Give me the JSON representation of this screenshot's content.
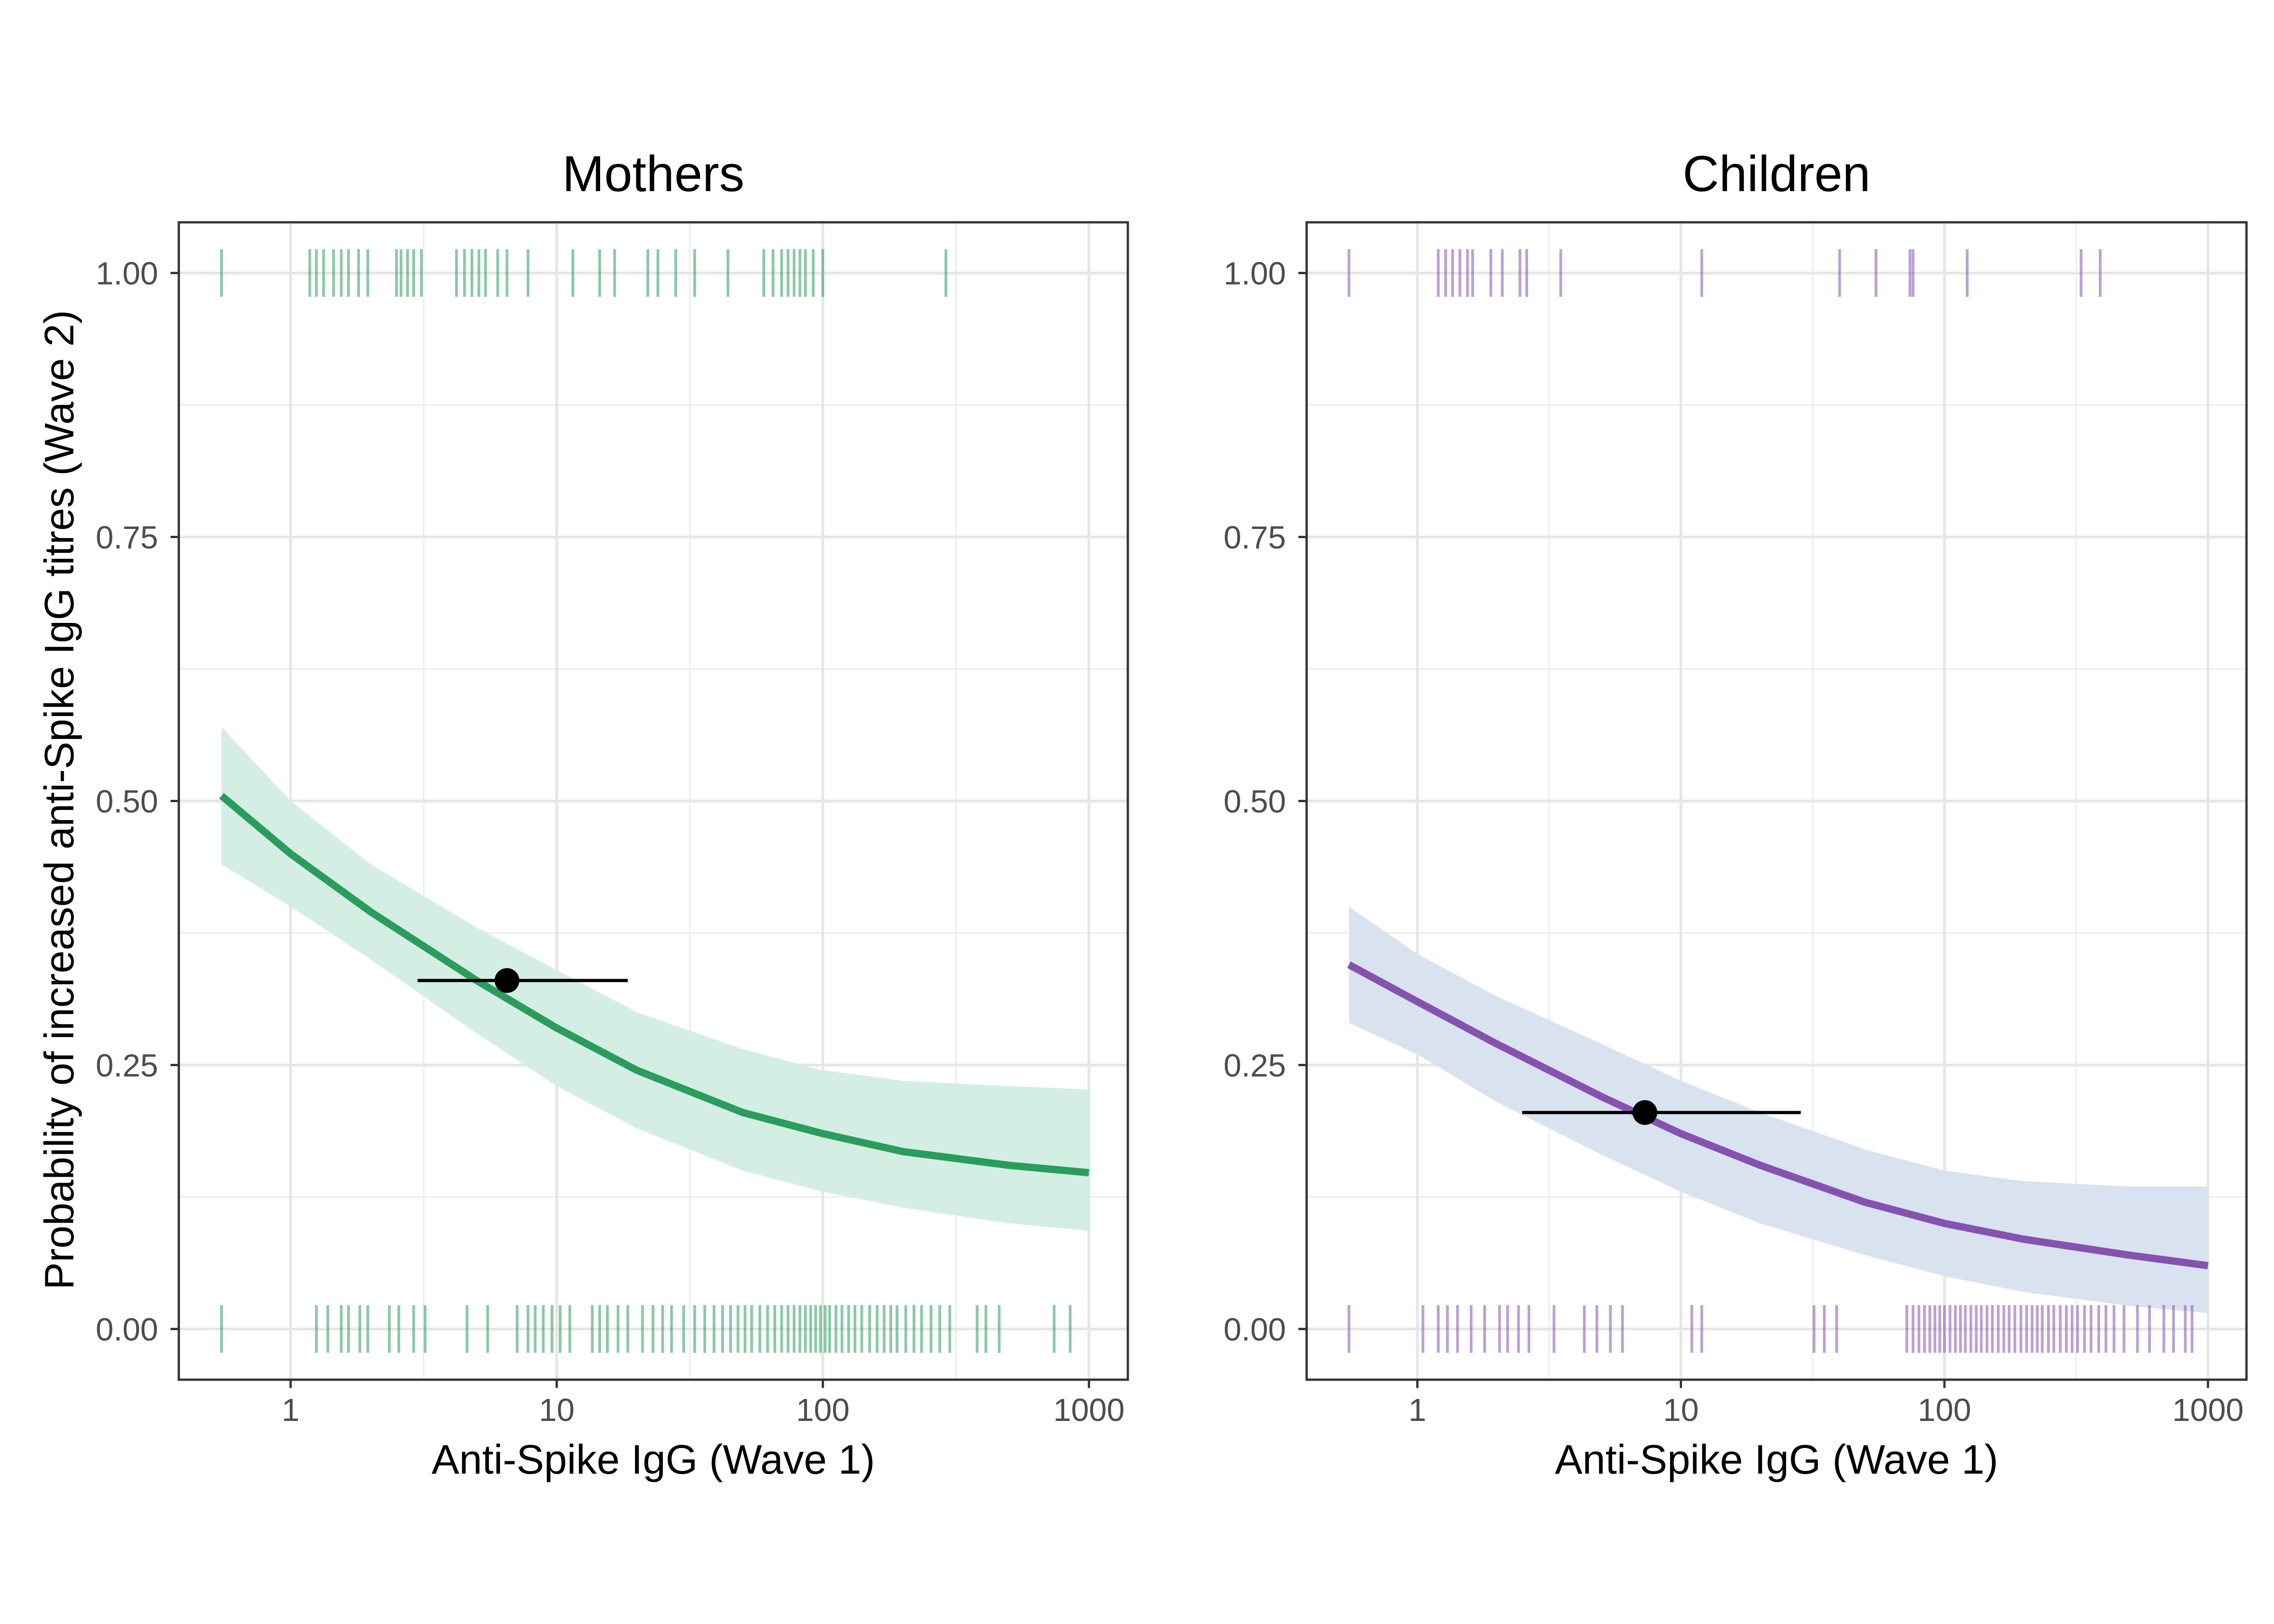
{
  "ylabel": "Probability of increased anti-Spike IgG titres (Wave 2)",
  "chart_data": [
    {
      "type": "line",
      "title": "Mothers",
      "xlabel": "Anti-Spike IgG (Wave 1)",
      "ylabel": "Probability of increased anti-Spike IgG titres (Wave 2)",
      "x_scale": "log10",
      "xlim": [
        0.38,
        1400
      ],
      "ylim": [
        -0.048,
        1.048
      ],
      "x_ticks": [
        1,
        10,
        100,
        1000
      ],
      "x_tick_labels": [
        "1",
        "10",
        "100",
        "1000"
      ],
      "y_ticks": [
        0,
        0.25,
        0.5,
        0.75,
        1
      ],
      "y_tick_labels": [
        "0.00",
        "0.25",
        "0.50",
        "0.75",
        "1.00"
      ],
      "grid": true,
      "color": "#2a9d5c",
      "band_color": "#d4eee4",
      "fit": {
        "x": [
          0.55,
          1,
          2,
          5,
          10,
          20,
          50,
          100,
          200,
          500,
          1000
        ],
        "y": [
          0.505,
          0.45,
          0.395,
          0.33,
          0.285,
          0.245,
          0.205,
          0.185,
          0.168,
          0.155,
          0.148
        ],
        "lower": [
          0.44,
          0.4,
          0.35,
          0.28,
          0.23,
          0.19,
          0.15,
          0.13,
          0.115,
          0.1,
          0.093
        ],
        "upper": [
          0.57,
          0.5,
          0.44,
          0.38,
          0.34,
          0.3,
          0.265,
          0.245,
          0.235,
          0.23,
          0.227
        ]
      },
      "point": {
        "x": 6.5,
        "y": 0.33,
        "x_low": 3.0,
        "x_high": 18.5
      },
      "rug_top": [
        0.55,
        1.18,
        1.25,
        1.33,
        1.45,
        1.55,
        1.65,
        1.8,
        1.95,
        2.5,
        2.6,
        2.75,
        2.9,
        3.1,
        4.2,
        4.5,
        4.8,
        5.1,
        5.4,
        6.0,
        6.5,
        7.8,
        11.5,
        14.5,
        16.5,
        22,
        24,
        28,
        33,
        44,
        60,
        65,
        70,
        74,
        78,
        82,
        86,
        92,
        100,
        290
      ],
      "rug_bottom": [
        0.55,
        1.25,
        1.38,
        1.55,
        1.65,
        1.82,
        1.95,
        2.35,
        2.55,
        2.9,
        3.2,
        4.6,
        5.5,
        7.1,
        7.8,
        8.3,
        8.9,
        9.6,
        10.3,
        11.2,
        13.6,
        14.5,
        15.5,
        17,
        18.5,
        21,
        23,
        25,
        27,
        30,
        33,
        36,
        39,
        42,
        45,
        48,
        51,
        54,
        58,
        62,
        66,
        70,
        74,
        78,
        82,
        86,
        90,
        94,
        98,
        102,
        106,
        112,
        118,
        125,
        132,
        140,
        150,
        160,
        170,
        180,
        190,
        205,
        220,
        235,
        255,
        275,
        300,
        380,
        410,
        460,
        740,
        850
      ]
    },
    {
      "type": "line",
      "title": "Children",
      "xlabel": "Anti-Spike IgG (Wave 1)",
      "ylabel": "",
      "x_scale": "log10",
      "xlim": [
        0.38,
        1400
      ],
      "ylim": [
        -0.048,
        1.048
      ],
      "x_ticks": [
        1,
        10,
        100,
        1000
      ],
      "x_tick_labels": [
        "1",
        "10",
        "100",
        "1000"
      ],
      "y_ticks": [
        0,
        0.25,
        0.5,
        0.75,
        1
      ],
      "y_tick_labels": [
        "0.00",
        "0.25",
        "0.50",
        "0.75",
        "1.00"
      ],
      "grid": true,
      "color": "#8652b0",
      "band_color": "#d9e3ef",
      "fit": {
        "x": [
          0.55,
          1,
          2,
          5,
          10,
          20,
          50,
          100,
          200,
          500,
          1000
        ],
        "y": [
          0.345,
          0.31,
          0.27,
          0.22,
          0.185,
          0.155,
          0.12,
          0.1,
          0.085,
          0.07,
          0.06
        ],
        "lower": [
          0.29,
          0.26,
          0.215,
          0.165,
          0.13,
          0.1,
          0.07,
          0.05,
          0.035,
          0.022,
          0.015
        ],
        "upper": [
          0.4,
          0.355,
          0.315,
          0.27,
          0.235,
          0.205,
          0.17,
          0.15,
          0.14,
          0.135,
          0.135
        ]
      },
      "point": {
        "x": 7.3,
        "y": 0.205,
        "x_low": 2.5,
        "x_high": 28.5
      },
      "rug_top": [
        0.55,
        1.2,
        1.28,
        1.36,
        1.45,
        1.55,
        1.62,
        1.9,
        2.1,
        2.45,
        2.6,
        3.5,
        12,
        40,
        55,
        74,
        76,
        122,
        330,
        390
      ],
      "rug_bottom": [
        0.55,
        1.05,
        1.2,
        1.3,
        1.42,
        1.6,
        1.8,
        2.05,
        2.2,
        2.42,
        2.65,
        3.3,
        4.3,
        4.8,
        5.4,
        6.0,
        11,
        12,
        32,
        35,
        39,
        72,
        76,
        80,
        84,
        88,
        92,
        96,
        100,
        105,
        110,
        115,
        120,
        126,
        132,
        138,
        145,
        152,
        160,
        168,
        176,
        185,
        195,
        205,
        215,
        225,
        235,
        248,
        260,
        275,
        290,
        305,
        320,
        340,
        360,
        385,
        410,
        440,
        480,
        540,
        600,
        680,
        740,
        820,
        870
      ]
    }
  ]
}
